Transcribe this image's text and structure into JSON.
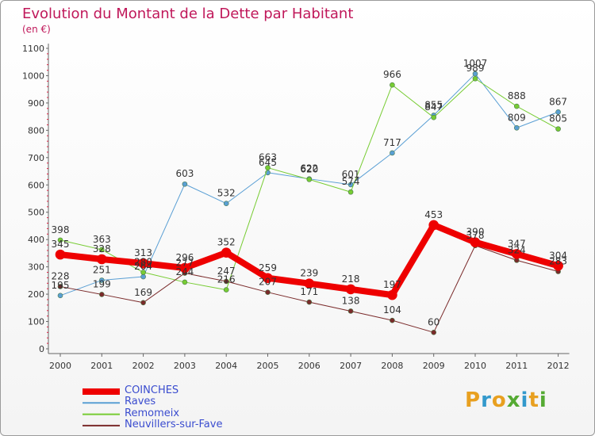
{
  "header": {
    "title": "Evolution du Montant de la Dette par Habitant",
    "unit": "(en €)"
  },
  "logo": {
    "letters": [
      "P",
      "r",
      "o",
      "x",
      "i",
      "t",
      "i"
    ],
    "colors": [
      "#e8a020",
      "#3399cc",
      "#e8a020",
      "#55aa33",
      "#3399cc",
      "#e8a020",
      "#55aa33"
    ]
  },
  "chart_data": {
    "type": "line",
    "title": "Evolution du Montant de la Dette par Habitant",
    "subtitle": "(en €)",
    "x": [
      "2000",
      "2001",
      "2002",
      "2003",
      "2004",
      "2005",
      "2006",
      "2007",
      "2008",
      "2009",
      "2010",
      "2011",
      "2012"
    ],
    "ylim": [
      0,
      1100
    ],
    "yticks": [
      0,
      100,
      200,
      300,
      400,
      500,
      600,
      700,
      800,
      900,
      1000,
      1100
    ],
    "grid": false,
    "legend": "bottom-left",
    "series": [
      {
        "name": "COINCHES",
        "color": "#ee0000",
        "width": 8,
        "values": [
          345,
          328,
          313,
          296,
          352,
          259,
          239,
          218,
          197,
          453,
          390,
          347,
          304
        ]
      },
      {
        "name": "Raves",
        "color": "#5a9fd4",
        "width": 1,
        "values": [
          195,
          251,
          264,
          603,
          532,
          645,
          622,
          601,
          717,
          855,
          1007,
          809,
          867
        ]
      },
      {
        "name": "Remomeix",
        "color": "#77cc33",
        "width": 1,
        "values": [
          398,
          363,
          280,
          244,
          216,
          663,
          620,
          574,
          966,
          847,
          989,
          888,
          805
        ]
      },
      {
        "name": "Neuvillers-sur-Fave",
        "color": "#7a2a2a",
        "width": 1,
        "values": [
          228,
          199,
          169,
          277,
          247,
          207,
          171,
          138,
          104,
          60,
          378,
          324,
          283
        ]
      }
    ]
  }
}
